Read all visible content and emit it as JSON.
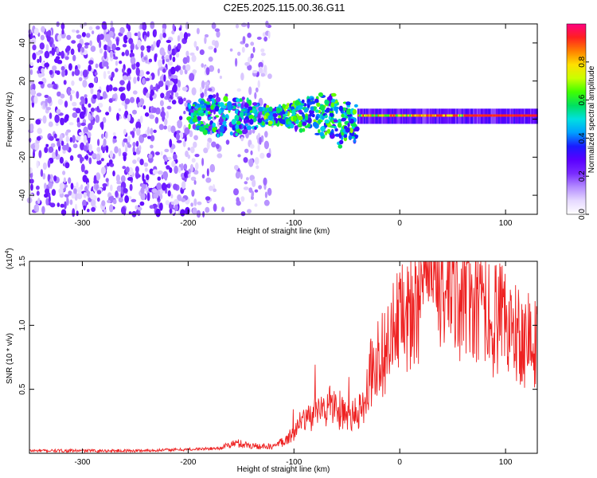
{
  "figure_title": "C2E5.2025.115.00.36.G11",
  "colors": {
    "snr_line": "#ee2222",
    "colormap": [
      "#ffffff",
      "#e6d9ff",
      "#b48cff",
      "#7a2cff",
      "#5a00ff",
      "#1a1aff",
      "#00a0ff",
      "#00e0e0",
      "#00e060",
      "#40ff00",
      "#c8ff00",
      "#ffe000",
      "#ff8000",
      "#ff2020",
      "#ff0080"
    ]
  },
  "chart_data": [
    {
      "type": "heatmap",
      "xlabel": "Height of straight line (km)",
      "ylabel": "Frequency (Hz)",
      "xlim": [
        -350,
        130
      ],
      "ylim": [
        -50,
        50
      ],
      "x_ticks": [
        "-300",
        "-200",
        "-100",
        "0",
        "100"
      ],
      "x_tick_values": [
        -300,
        -200,
        -100,
        0,
        100
      ],
      "y_ticks": [
        "-40",
        "-20",
        "0",
        "20",
        "40"
      ],
      "y_tick_values": [
        -40,
        -20,
        0,
        20,
        40
      ],
      "colorbar": {
        "label": "Normalized spectral amplitude",
        "range": [
          0,
          1
        ],
        "ticks": [
          "0.0",
          "0.2",
          "0.4",
          "0.6",
          "0.8"
        ],
        "tick_values": [
          0.0,
          0.2,
          0.4,
          0.6,
          0.8
        ]
      },
      "description_points": [
        {
          "region": "noise",
          "x_range": [
            -350,
            -120
          ],
          "freq_range": [
            -50,
            50
          ],
          "amplitude": 0.15
        },
        {
          "region": "signal_band",
          "x_range": [
            -200,
            -40
          ],
          "freq_center": 2,
          "freq_halfwidth": 8,
          "amplitude": 0.5
        },
        {
          "region": "narrow_line",
          "x_range": [
            -40,
            130
          ],
          "freq_center": 1.5,
          "freq_halfwidth": 2,
          "amplitude": 0.95
        }
      ]
    },
    {
      "type": "line",
      "xlabel": "Height of straight line (km)",
      "ylabel": "SNR (10 * v/v)",
      "y_multiplier": "(x10",
      "y_multiplier_exp": "4",
      "y_multiplier_close": ")",
      "xlim": [
        -350,
        130
      ],
      "ylim": [
        0,
        1.5
      ],
      "x_ticks": [
        "-300",
        "-200",
        "-100",
        "0",
        "100"
      ],
      "x_tick_values": [
        -300,
        -200,
        -100,
        0,
        100
      ],
      "y_ticks": [
        "0.5",
        "1.0",
        "1.5"
      ],
      "y_tick_values": [
        0.5,
        1.0,
        1.5
      ],
      "series": [
        {
          "x": [
            -350,
            -300,
            -250,
            -200,
            -170,
            -155,
            -140,
            -120,
            -105,
            -95,
            -85,
            -75,
            -65,
            -55,
            -45,
            -35,
            -30,
            -25,
            -20,
            -15,
            -10,
            -5,
            0,
            10,
            20,
            30,
            40,
            50,
            60,
            70,
            80,
            90,
            100,
            110,
            120,
            130
          ],
          "values": [
            0.02,
            0.02,
            0.02,
            0.03,
            0.04,
            0.08,
            0.06,
            0.05,
            0.12,
            0.22,
            0.28,
            0.33,
            0.38,
            0.32,
            0.28,
            0.35,
            0.55,
            0.7,
            0.75,
            0.8,
            0.85,
            0.95,
            1.0,
            1.15,
            1.3,
            1.38,
            1.3,
            1.25,
            1.3,
            1.2,
            1.1,
            1.05,
            1.0,
            0.95,
            0.9,
            0.85
          ]
        }
      ]
    }
  ]
}
